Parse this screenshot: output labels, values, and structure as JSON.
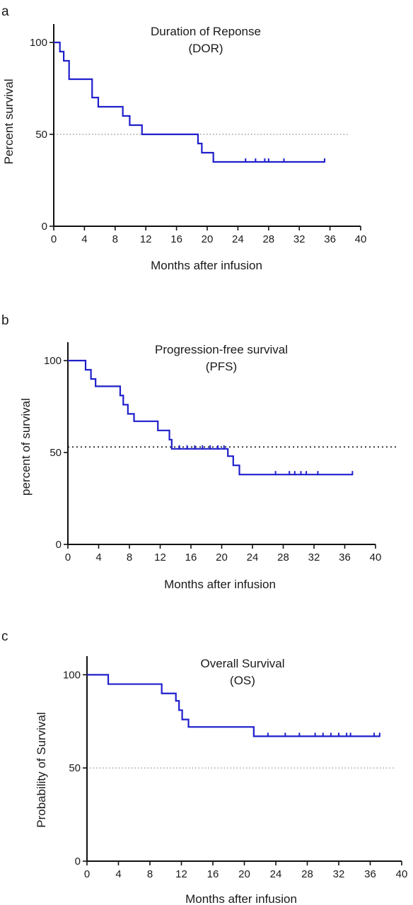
{
  "chart_data": [
    {
      "type": "line",
      "panel": "a",
      "title": "Duration of Reponse",
      "subtitle": "(DOR)",
      "xlabel": "Months after infusion",
      "ylabel": "Percent survival",
      "xlim": [
        0,
        40
      ],
      "ylim": [
        0,
        110
      ],
      "xticks": [
        0,
        4,
        8,
        12,
        16,
        20,
        24,
        28,
        32,
        36,
        40
      ],
      "yticks": [
        0,
        50,
        100
      ],
      "line_color": "#1f1fcc",
      "reference_line": {
        "y": 50,
        "x_range": [
          0,
          38.5
        ],
        "style": "dotted",
        "color": "#888888"
      },
      "series": [
        {
          "steps": [
            [
              0,
              100
            ],
            [
              0.8,
              95
            ],
            [
              1.3,
              90
            ],
            [
              2,
              80
            ],
            [
              5,
              70
            ],
            [
              5.8,
              65
            ],
            [
              9,
              60
            ],
            [
              9.9,
              55
            ],
            [
              11.5,
              50
            ],
            [
              18.8,
              45
            ],
            [
              19.3,
              40
            ],
            [
              20.8,
              35
            ],
            [
              35.3,
              35
            ]
          ],
          "censored": [
            [
              25,
              35
            ],
            [
              26.3,
              35
            ],
            [
              27.5,
              35
            ],
            [
              28,
              35
            ],
            [
              30,
              35
            ],
            [
              35.3,
              35
            ]
          ]
        }
      ]
    },
    {
      "type": "line",
      "panel": "b",
      "title": "Progression-free survival",
      "subtitle": "(PFS)",
      "xlabel": "Months after infusion",
      "ylabel": "percent of survival",
      "xlim": [
        0,
        40
      ],
      "ylim": [
        0,
        110
      ],
      "xticks": [
        0,
        4,
        8,
        12,
        16,
        20,
        24,
        28,
        32,
        36,
        40
      ],
      "yticks": [
        0,
        50,
        100
      ],
      "line_color": "#1f1fcc",
      "reference_line": {
        "y": 53,
        "x_range": [
          0,
          43
        ],
        "style": "dotted",
        "color": "#333333"
      },
      "series": [
        {
          "steps": [
            [
              0,
              100
            ],
            [
              2.3,
              95
            ],
            [
              3,
              90
            ],
            [
              3.6,
              86
            ],
            [
              6.8,
              81
            ],
            [
              7.2,
              76
            ],
            [
              7.8,
              71
            ],
            [
              8.6,
              67
            ],
            [
              11.7,
              62
            ],
            [
              13.2,
              57
            ],
            [
              13.5,
              52
            ],
            [
              20.8,
              48
            ],
            [
              21.5,
              43
            ],
            [
              22.3,
              38
            ],
            [
              37,
              38
            ]
          ],
          "censored": [
            [
              14.5,
              52
            ],
            [
              15.5,
              52
            ],
            [
              16.5,
              52
            ],
            [
              17.5,
              52
            ],
            [
              18.5,
              52
            ],
            [
              19.5,
              52
            ],
            [
              20.3,
              52
            ],
            [
              27,
              38
            ],
            [
              28.8,
              38
            ],
            [
              29.5,
              38
            ],
            [
              30.3,
              38
            ],
            [
              31,
              38
            ],
            [
              32.5,
              38
            ],
            [
              37,
              38
            ]
          ]
        }
      ]
    },
    {
      "type": "line",
      "panel": "c",
      "title": "Overall Survival",
      "subtitle": "(OS)",
      "xlabel": "Months after infusion",
      "ylabel": "Probability of Survival",
      "xlim": [
        0,
        40
      ],
      "ylim": [
        0,
        110
      ],
      "xticks": [
        0,
        4,
        8,
        12,
        16,
        20,
        24,
        28,
        32,
        36,
        40
      ],
      "yticks": [
        0,
        50,
        100
      ],
      "line_color": "#1f1fcc",
      "reference_line": {
        "y": 50,
        "x_range": [
          0,
          39
        ],
        "style": "dotted",
        "color": "#888888"
      },
      "series": [
        {
          "steps": [
            [
              0,
              100
            ],
            [
              2.7,
              95
            ],
            [
              9.5,
              90
            ],
            [
              11.3,
              86
            ],
            [
              11.7,
              81
            ],
            [
              12.1,
              76
            ],
            [
              12.9,
              72
            ],
            [
              21.2,
              67
            ],
            [
              37.2,
              67
            ]
          ],
          "censored": [
            [
              23,
              67
            ],
            [
              25.2,
              67
            ],
            [
              27,
              67
            ],
            [
              29,
              67
            ],
            [
              30,
              67
            ],
            [
              31,
              67
            ],
            [
              32,
              67
            ],
            [
              33,
              67
            ],
            [
              33.5,
              67
            ],
            [
              36.5,
              67
            ],
            [
              37.2,
              67
            ]
          ]
        }
      ]
    }
  ]
}
